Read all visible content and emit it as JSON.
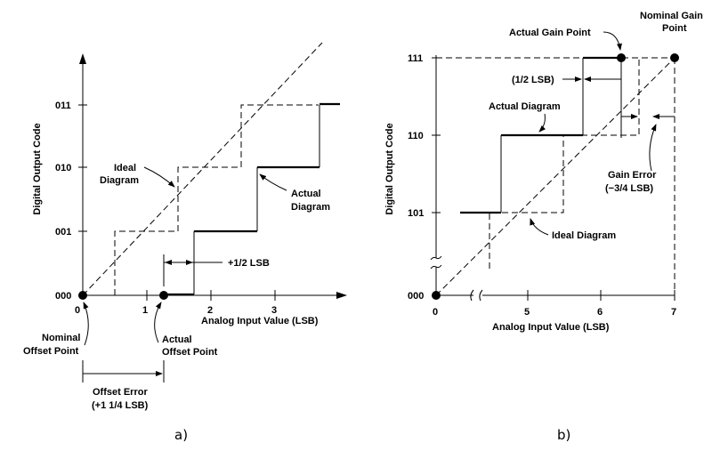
{
  "panel_a": {
    "caption": "a)",
    "y_axis_label": "Digital Output Code",
    "x_axis_label": "Analog Input Value (LSB)",
    "y_ticks": [
      "000",
      "001",
      "010",
      "011"
    ],
    "x_ticks": [
      "0",
      "1",
      "2",
      "3"
    ],
    "ideal_label_line1": "Ideal",
    "ideal_label_line2": "Diagram",
    "actual_label_line1": "Actual",
    "actual_label_line2": "Diagram",
    "half_lsb_label": "+1/2 LSB",
    "nominal_offset_line1": "Nominal",
    "nominal_offset_line2": "Offset Point",
    "actual_offset_line1": "Actual",
    "actual_offset_line2": "Offset Point",
    "offset_error_line1": "Offset Error",
    "offset_error_line2": "(+1 1/4 LSB)"
  },
  "panel_b": {
    "caption": "b)",
    "y_axis_label": "Digital Output Code",
    "x_axis_label": "Analog Input Value (LSB)",
    "y_ticks": [
      "000",
      "101",
      "110",
      "111"
    ],
    "x_ticks": [
      "0",
      "5",
      "6",
      "7"
    ],
    "actual_gain_point_label": "Actual Gain Point",
    "nominal_gain_line1": "Nominal Gain",
    "nominal_gain_line2": "Point",
    "half_lsb_label": "(1/2 LSB)",
    "actual_diagram_label": "Actual Diagram",
    "ideal_diagram_label": "Ideal Diagram",
    "gain_error_line1": "Gain Error",
    "gain_error_line2": "(−3/4 LSB)"
  }
}
